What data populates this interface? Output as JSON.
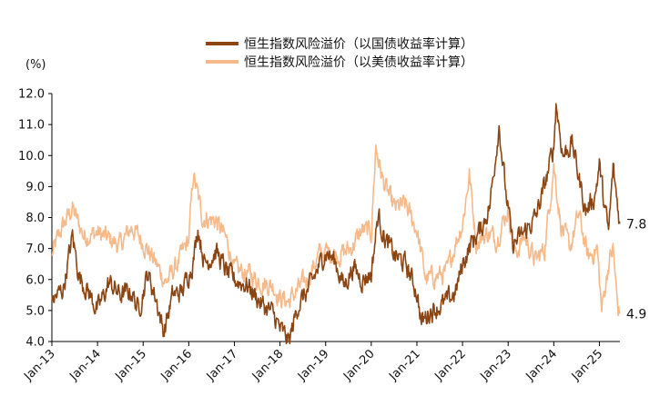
{
  "chart_data": {
    "type": "line",
    "unit": "(%)",
    "ylim": [
      4.0,
      12.0
    ],
    "yticks": [
      "4.0",
      "5.0",
      "6.0",
      "7.0",
      "8.0",
      "9.0",
      "10.0",
      "11.0",
      "12.0"
    ],
    "xlim": [
      2013.0,
      2025.45
    ],
    "xticks": [
      {
        "label": "Jan-13",
        "year": 2013
      },
      {
        "label": "Jan-14",
        "year": 2014
      },
      {
        "label": "Jan-15",
        "year": 2015
      },
      {
        "label": "Jan-16",
        "year": 2016
      },
      {
        "label": "Jan-17",
        "year": 2017
      },
      {
        "label": "Jan-18",
        "year": 2018
      },
      {
        "label": "Jan-19",
        "year": 2019
      },
      {
        "label": "Jan-20",
        "year": 2020
      },
      {
        "label": "Jan-21",
        "year": 2021
      },
      {
        "label": "Jan-22",
        "year": 2022
      },
      {
        "label": "Jan-23",
        "year": 2023
      },
      {
        "label": "Jan-24",
        "year": 2024
      },
      {
        "label": "Jan-25",
        "year": 2025
      }
    ],
    "legend_position": "top-center",
    "series": [
      {
        "name": "恒生指数风险溢价（以国债收益率计算）",
        "color": "#8B4513",
        "end_label": "7.8",
        "points": [
          [
            2013.0,
            5.3
          ],
          [
            2013.25,
            5.7
          ],
          [
            2013.45,
            7.4
          ],
          [
            2013.6,
            6.1
          ],
          [
            2013.8,
            5.6
          ],
          [
            2014.0,
            5.0
          ],
          [
            2014.25,
            5.9
          ],
          [
            2014.5,
            5.5
          ],
          [
            2014.75,
            5.6
          ],
          [
            2014.9,
            5.0
          ],
          [
            2015.1,
            6.2
          ],
          [
            2015.3,
            5.3
          ],
          [
            2015.45,
            4.3
          ],
          [
            2015.65,
            5.5
          ],
          [
            2015.85,
            5.6
          ],
          [
            2016.1,
            6.6
          ],
          [
            2016.2,
            7.7
          ],
          [
            2016.35,
            6.5
          ],
          [
            2016.6,
            6.9
          ],
          [
            2016.85,
            6.2
          ],
          [
            2017.0,
            6.0
          ],
          [
            2017.3,
            5.8
          ],
          [
            2017.6,
            5.2
          ],
          [
            2017.85,
            4.9
          ],
          [
            2018.0,
            4.4
          ],
          [
            2018.2,
            4.0
          ],
          [
            2018.4,
            5.2
          ],
          [
            2018.6,
            5.6
          ],
          [
            2018.85,
            6.4
          ],
          [
            2019.0,
            6.9
          ],
          [
            2019.2,
            6.6
          ],
          [
            2019.4,
            5.8
          ],
          [
            2019.6,
            6.4
          ],
          [
            2019.8,
            6.0
          ],
          [
            2020.0,
            6.2
          ],
          [
            2020.15,
            8.1
          ],
          [
            2020.3,
            7.3
          ],
          [
            2020.5,
            6.8
          ],
          [
            2020.75,
            6.5
          ],
          [
            2021.0,
            5.6
          ],
          [
            2021.1,
            4.6
          ],
          [
            2021.3,
            5.0
          ],
          [
            2021.6,
            5.2
          ],
          [
            2021.85,
            5.6
          ],
          [
            2022.0,
            6.5
          ],
          [
            2022.2,
            7.2
          ],
          [
            2022.4,
            7.6
          ],
          [
            2022.6,
            8.4
          ],
          [
            2022.8,
            11.0
          ],
          [
            2022.95,
            8.8
          ],
          [
            2023.1,
            7.1
          ],
          [
            2023.4,
            7.6
          ],
          [
            2023.6,
            8.0
          ],
          [
            2023.8,
            9.0
          ],
          [
            2024.0,
            10.3
          ],
          [
            2024.05,
            11.7
          ],
          [
            2024.2,
            10.0
          ],
          [
            2024.4,
            10.4
          ],
          [
            2024.7,
            8.2
          ],
          [
            2024.9,
            8.7
          ],
          [
            2025.0,
            9.7
          ],
          [
            2025.1,
            8.5
          ],
          [
            2025.2,
            7.5
          ],
          [
            2025.3,
            9.6
          ],
          [
            2025.45,
            7.8
          ]
        ]
      },
      {
        "name": "恒生指数风险溢价（以美债收益率计算）",
        "color": "#F5B98A",
        "end_label": "4.9",
        "points": [
          [
            2013.0,
            6.8
          ],
          [
            2013.2,
            7.6
          ],
          [
            2013.45,
            8.3
          ],
          [
            2013.7,
            7.4
          ],
          [
            2014.0,
            7.5
          ],
          [
            2014.25,
            7.3
          ],
          [
            2014.5,
            7.1
          ],
          [
            2014.75,
            7.7
          ],
          [
            2015.0,
            7.2
          ],
          [
            2015.25,
            6.6
          ],
          [
            2015.5,
            5.9
          ],
          [
            2015.75,
            6.5
          ],
          [
            2016.0,
            7.3
          ],
          [
            2016.1,
            9.4
          ],
          [
            2016.3,
            8.0
          ],
          [
            2016.6,
            7.9
          ],
          [
            2016.85,
            7.2
          ],
          [
            2017.0,
            6.3
          ],
          [
            2017.3,
            6.2
          ],
          [
            2017.6,
            5.9
          ],
          [
            2017.85,
            5.8
          ],
          [
            2018.0,
            5.4
          ],
          [
            2018.2,
            5.3
          ],
          [
            2018.4,
            5.7
          ],
          [
            2018.6,
            6.0
          ],
          [
            2018.85,
            6.8
          ],
          [
            2019.0,
            6.9
          ],
          [
            2019.3,
            6.8
          ],
          [
            2019.55,
            7.0
          ],
          [
            2019.8,
            7.6
          ],
          [
            2020.0,
            7.5
          ],
          [
            2020.1,
            10.3
          ],
          [
            2020.25,
            9.2
          ],
          [
            2020.5,
            8.3
          ],
          [
            2020.75,
            8.4
          ],
          [
            2021.0,
            7.6
          ],
          [
            2021.2,
            6.0
          ],
          [
            2021.4,
            6.1
          ],
          [
            2021.65,
            6.2
          ],
          [
            2021.85,
            7.2
          ],
          [
            2022.0,
            7.8
          ],
          [
            2022.15,
            9.4
          ],
          [
            2022.3,
            7.2
          ],
          [
            2022.55,
            7.5
          ],
          [
            2022.75,
            7.3
          ],
          [
            2023.0,
            8.3
          ],
          [
            2023.15,
            6.8
          ],
          [
            2023.35,
            7.4
          ],
          [
            2023.6,
            6.6
          ],
          [
            2023.8,
            7.0
          ],
          [
            2024.0,
            9.7
          ],
          [
            2024.15,
            7.8
          ],
          [
            2024.35,
            7.0
          ],
          [
            2024.55,
            8.1
          ],
          [
            2024.75,
            6.7
          ],
          [
            2024.95,
            7.0
          ],
          [
            2025.05,
            5.0
          ],
          [
            2025.2,
            6.5
          ],
          [
            2025.3,
            7.0
          ],
          [
            2025.4,
            5.1
          ],
          [
            2025.45,
            4.9
          ]
        ]
      }
    ]
  }
}
